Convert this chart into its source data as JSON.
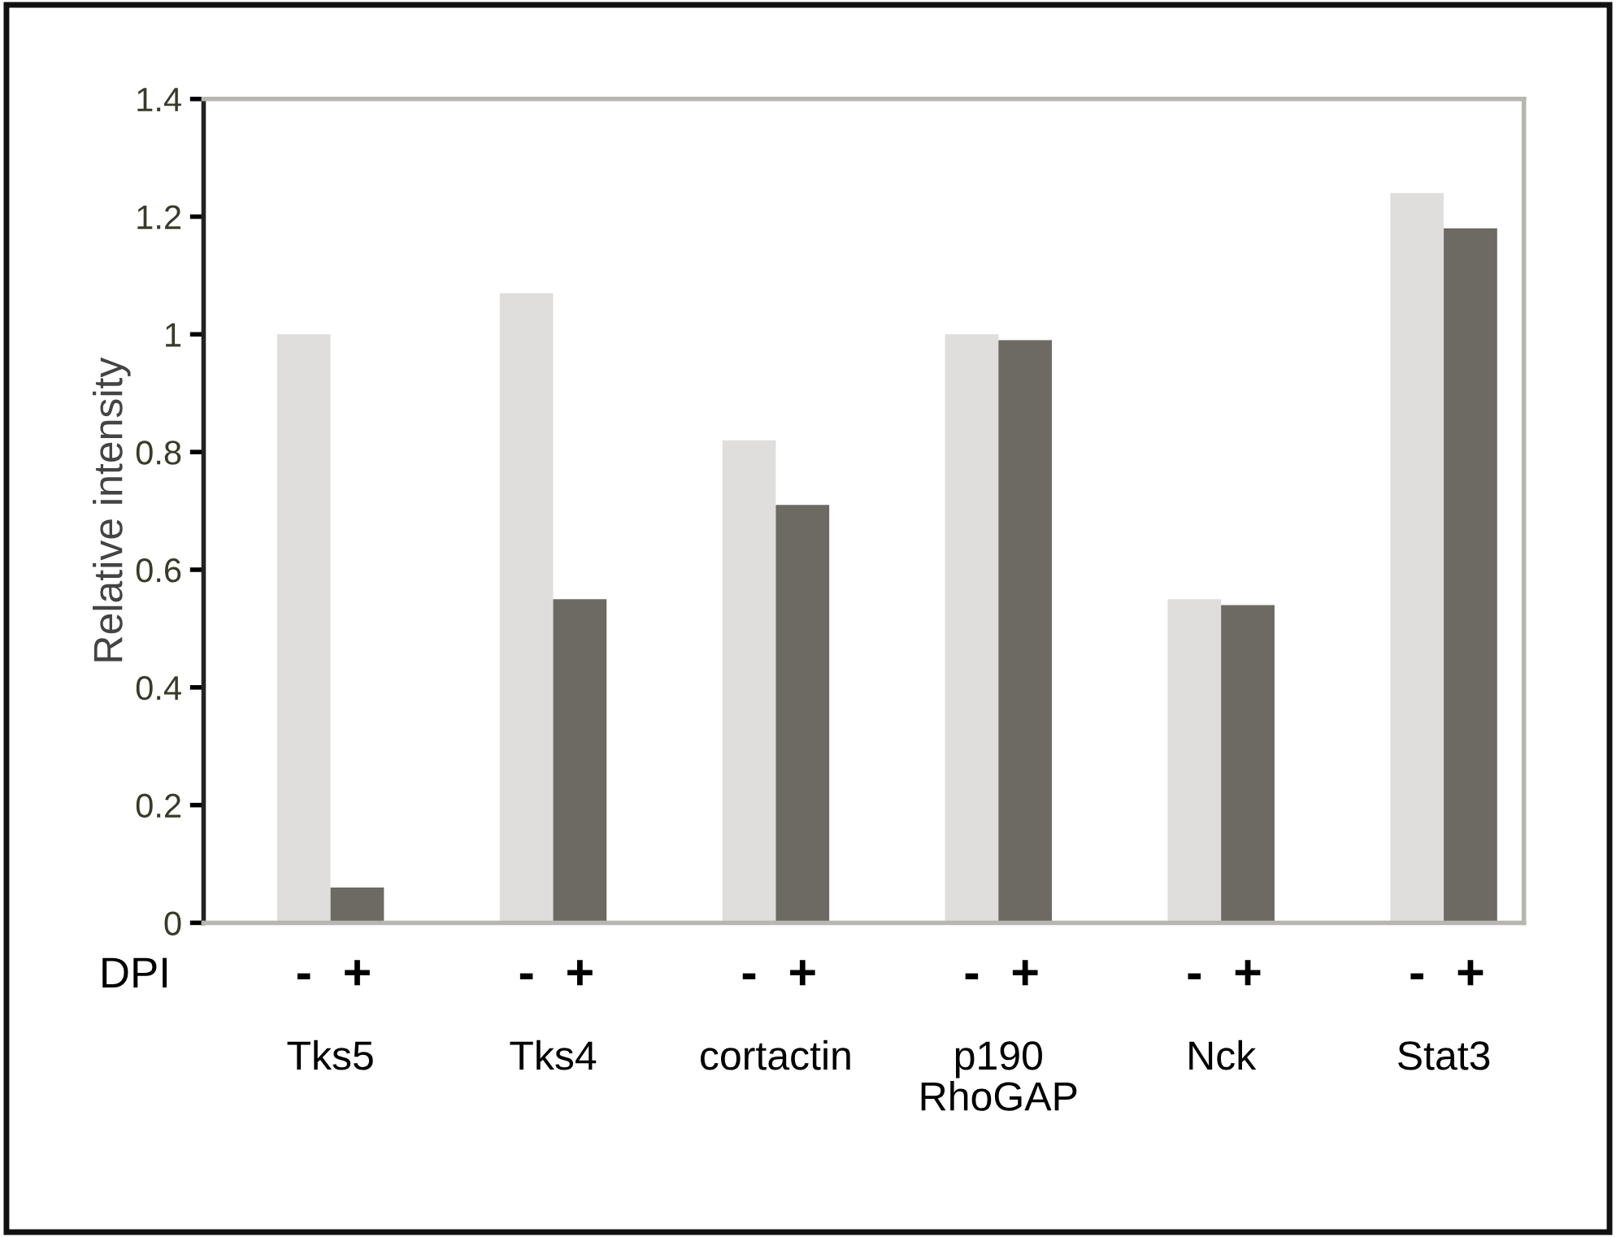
{
  "chart_data": {
    "type": "bar",
    "ylabel": "Relative intensity",
    "legend_title": "DPI",
    "categories": [
      "Tks5",
      "Tks4",
      "cortactin",
      "p190\nRhoGAP",
      "Nck",
      "Stat3"
    ],
    "series": [
      {
        "name": "-",
        "color": "#dfdedd",
        "values": [
          1.0,
          1.07,
          0.82,
          1.0,
          0.55,
          1.24
        ]
      },
      {
        "name": "+",
        "color": "#6c6a63",
        "values": [
          0.06,
          0.55,
          0.71,
          0.99,
          0.54,
          1.18
        ]
      }
    ],
    "ylim": [
      0,
      1.4
    ],
    "yticks": [
      0,
      0.2,
      0.4,
      0.6,
      0.8,
      1,
      1.2,
      1.4
    ],
    "grid": false,
    "legend": false
  }
}
